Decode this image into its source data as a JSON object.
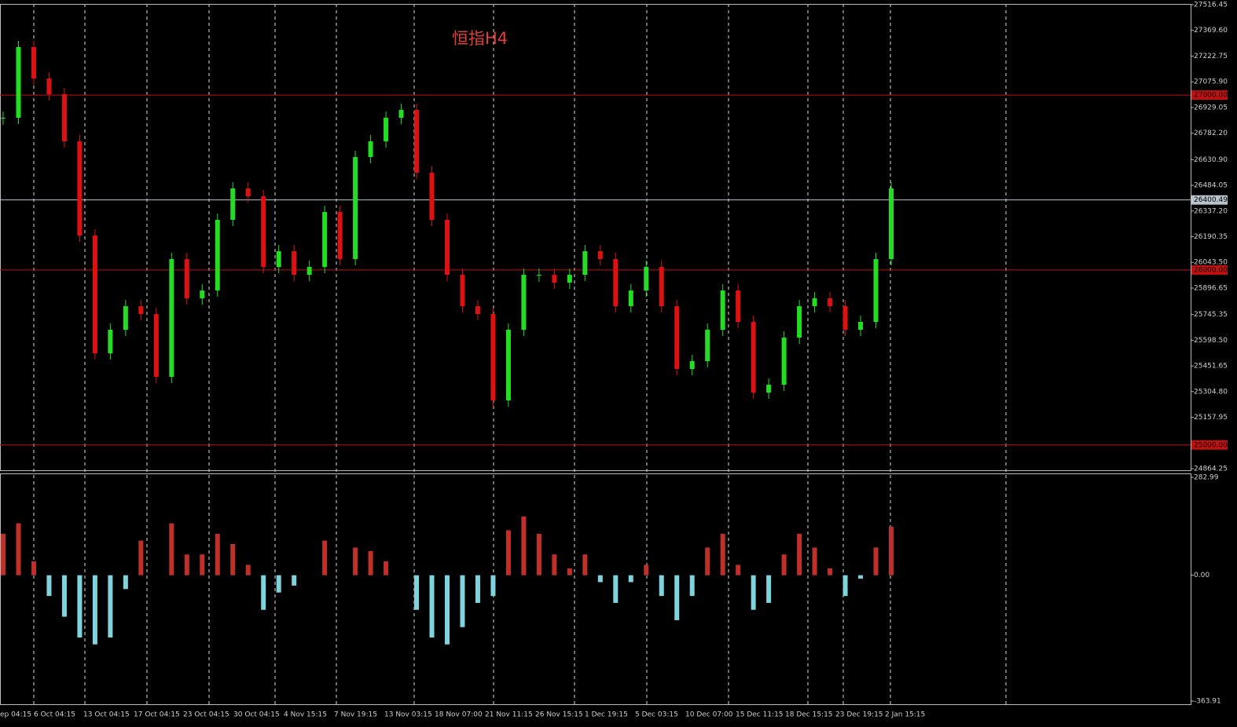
{
  "chart_data": {
    "type": "candlestick",
    "title": "恒指H4",
    "ylim": [
      24864.25,
      27516.45
    ],
    "yticks": [
      {
        "value": 27516.45,
        "label": "27516.45"
      },
      {
        "value": 27369.6,
        "label": "27369.60"
      },
      {
        "value": 27222.75,
        "label": "27222.75"
      },
      {
        "value": 27075.9,
        "label": "27075.90"
      },
      {
        "value": 26929.05,
        "label": "26929.05"
      },
      {
        "value": 26782.2,
        "label": "26782.20"
      },
      {
        "value": 26630.9,
        "label": "26630.90"
      },
      {
        "value": 26484.05,
        "label": "26484.05"
      },
      {
        "value": 26337.2,
        "label": "26337.20"
      },
      {
        "value": 26190.35,
        "label": "26190.35"
      },
      {
        "value": 26043.5,
        "label": "26043.50"
      },
      {
        "value": 25896.65,
        "label": "25896.65"
      },
      {
        "value": 25745.35,
        "label": "25745.35"
      },
      {
        "value": 25598.5,
        "label": "25598.50"
      },
      {
        "value": 25451.65,
        "label": "25451.65"
      },
      {
        "value": 25304.8,
        "label": "25304.80"
      },
      {
        "value": 25157.95,
        "label": "25157.95"
      },
      {
        "value": 24864.25,
        "label": "24864.25"
      }
    ],
    "levels": [
      {
        "value": 27000,
        "label": "27000.00",
        "color": "#c01010"
      },
      {
        "value": 26400.49,
        "label": "26400.49",
        "color": "#b8c4cc"
      },
      {
        "value": 26000,
        "label": "26000.00",
        "color": "#c01010"
      },
      {
        "value": 25000,
        "label": "25000.00",
        "color": "#c01010"
      }
    ],
    "x_labels": [
      "ep 04:15",
      "6 Oct 04:15",
      "13 Oct 04:15",
      "17 Oct 04:15",
      "23 Oct 04:15",
      "30 Oct 04:15",
      "4 Nov 15:15",
      "7 Nov 19:15",
      "13 Nov 03:15",
      "18 Nov 07:00",
      "21 Nov 11:15",
      "26 Nov 15:15",
      "1 Dec 19:15",
      "5 Dec 03:15",
      "10 Dec 07:00",
      "15 Dec 11:15",
      "18 Dec 15:15",
      "23 Dec 19:15",
      "2 Jan 15:15"
    ],
    "series": [
      {
        "name": "close",
        "up_color": "#22dd22",
        "down_color": "#dd1111",
        "values": [
          26870.2,
          27274.1,
          27094.6,
          27004.8,
          26735.5,
          26197.1,
          25523.9,
          25658.5,
          25793.1,
          25748.2,
          25389.2,
          26062.4,
          25838.0,
          25882.9,
          26286.8,
          26466.3,
          26421.4,
          26017.5,
          26107.3,
          25972.6,
          26017.5,
          26331.6,
          26062.4,
          26645.8,
          26735.5,
          26870.2,
          26915.1,
          26556.0,
          26286.8,
          25972.6,
          25793.1,
          25748.2,
          25254.6,
          25658.5,
          25972.6,
          25972.6,
          25927.8,
          25972.6,
          26107.3,
          26062.4,
          25793.1,
          25882.9,
          26017.5,
          25793.1,
          25434.1,
          25479.0,
          25658.5,
          25882.9,
          25703.4,
          25299.5,
          25344.4,
          25613.6,
          25793.1,
          25838.0,
          25793.1,
          25658.5,
          25703.4,
          26062.4,
          26466.3
        ]
      }
    ],
    "macd": {
      "ylim": [
        -363.91,
        282.99
      ],
      "yticks": [
        {
          "value": 282.99,
          "label": "282.99"
        },
        {
          "value": 0,
          "label": "0.00"
        },
        {
          "value": -363.91,
          "label": "-363.91"
        }
      ],
      "up_color": "#c0302a",
      "down_color": "#7fd3dc",
      "values": [
        120,
        150,
        40,
        -60,
        -120,
        -180,
        -200,
        -180,
        -40,
        100,
        0,
        150,
        60,
        60,
        120,
        90,
        30,
        -100,
        -50,
        -30,
        0,
        100,
        0,
        80,
        70,
        40,
        0,
        -100,
        -180,
        -200,
        -150,
        -80,
        -60,
        130,
        170,
        120,
        60,
        20,
        60,
        -20,
        -80,
        -20,
        30,
        -60,
        -130,
        -60,
        80,
        120,
        30,
        -100,
        -80,
        60,
        120,
        80,
        20,
        -60,
        -10,
        80,
        140
      ]
    }
  }
}
